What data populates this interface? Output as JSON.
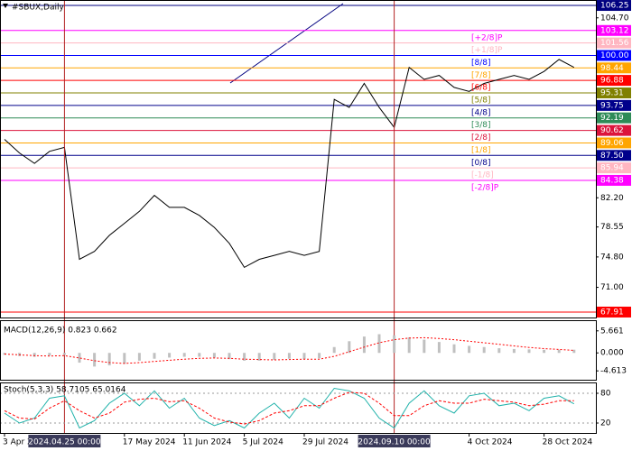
{
  "chart_data": [
    {
      "type": "line",
      "title": "#SBUX,Daily",
      "color": "#000000",
      "grid": false,
      "categories": [
        "3 Apr 2024",
        null,
        null,
        null,
        null,
        null,
        null,
        null,
        "17 May 2024",
        null,
        null,
        null,
        "11 Jun 2024",
        null,
        null,
        null,
        "5 Jul 2024",
        null,
        null,
        null,
        "29 Jul 2024",
        null,
        null,
        null,
        null,
        null,
        null,
        null,
        null,
        null,
        null,
        "4 Oct 2024",
        null,
        null,
        null,
        null,
        "28 Oct 2024",
        null,
        null
      ],
      "values": [
        89.5,
        87.8,
        86.5,
        88.0,
        88.5,
        74.5,
        75.5,
        77.5,
        79.0,
        80.5,
        82.5,
        81.0,
        81.0,
        80.0,
        78.5,
        76.5,
        73.5,
        74.5,
        75.0,
        75.5,
        75.0,
        75.5,
        94.5,
        93.5,
        96.5,
        93.5,
        91.0,
        98.5,
        97.0,
        97.5,
        96.0,
        95.5,
        96.5,
        97.0,
        97.5,
        97.0,
        98.0,
        99.5,
        98.5
      ],
      "crosshairs": [
        "2024.04.25 00:00",
        "2024.09.10 00:00"
      ],
      "ylim": [
        67.23,
        106.93
      ],
      "yticks": [
        {
          "value": 104.7,
          "label": "104.70"
        },
        {
          "value": 82.2,
          "label": "82.20"
        },
        78.55,
        {
          "value": 74.8,
          "label": "74.80"
        },
        {
          "value": 71,
          "label": "71.00"
        }
      ],
      "levels": [
        {
          "value": 106.25,
          "label": "106.25",
          "color": "#000080"
        },
        {
          "value": 103.12,
          "label": "103.12",
          "name": "[+2/8]P",
          "color": "#ff00ff"
        },
        {
          "value": 101.56,
          "label": "101.56",
          "name": "[+1/8]P",
          "color": "#ffb6c1"
        },
        {
          "value": 100,
          "label": "100.00",
          "name": "[8/8]",
          "color": "#0000ff"
        },
        {
          "value": 98.44,
          "label": "98.44",
          "name": "[7/8]",
          "color": "#ffa500"
        },
        {
          "value": 96.88,
          "label": "96.88",
          "name": "[6/8]",
          "color": "#ff0000"
        },
        {
          "value": 95.31,
          "label": "95.31",
          "name": "[5/8]",
          "color": "#808000"
        },
        {
          "value": 93.75,
          "label": "93.75",
          "name": "[4/8]",
          "color": "#00008b"
        },
        {
          "value": 92.19,
          "label": "92.19",
          "name": "[3/8]",
          "color": "#2e8b57"
        },
        {
          "value": 90.62,
          "label": "90.62",
          "name": "[2/8]",
          "color": "#dc143c"
        },
        {
          "value": 89.06,
          "label": "89.06",
          "name": "[1/8]",
          "color": "#ffa500"
        },
        {
          "value": 87.5,
          "label": "87.50",
          "name": "[0/8]",
          "color": "#00008b"
        },
        {
          "value": 85.94,
          "label": "85.94",
          "name": "[-1/8]",
          "color": "#ffb6c1"
        },
        {
          "value": 84.38,
          "label": "84.38",
          "name": "[-2/8]P",
          "color": "#ff00ff"
        },
        {
          "value": 67.91,
          "label": "67.91",
          "color": "#ff0000"
        }
      ]
    },
    {
      "type": "bar",
      "title": "MACD(12,26,9) 0.823 0.662",
      "ylim": [
        -6.89,
        8.16
      ],
      "yticks": [
        5.661,
        {
          "value": 0,
          "label": "0.000"
        },
        -4.613
      ],
      "series": [
        {
          "name": "MACD",
          "color": "#c0c0c0",
          "values": [
            -0.5,
            -0.8,
            -1.0,
            -0.7,
            -0.5,
            -2.5,
            -3.5,
            -3.2,
            -2.8,
            -2.0,
            -1.5,
            -1.2,
            -1.0,
            -1.0,
            -1.2,
            -1.6,
            -2.0,
            -2.0,
            -1.8,
            -1.5,
            -1.6,
            -1.4,
            1.5,
            3.0,
            4.2,
            4.8,
            4.5,
            4.0,
            3.4,
            2.8,
            2.2,
            1.8,
            1.5,
            1.2,
            1.0,
            0.9,
            0.8,
            0.8,
            0.823
          ]
        },
        {
          "name": "Signal",
          "color": "#ff0000",
          "values": [
            -0.3,
            -0.5,
            -0.7,
            -0.8,
            -0.7,
            -1.3,
            -2.0,
            -2.5,
            -2.7,
            -2.5,
            -2.2,
            -1.9,
            -1.6,
            -1.4,
            -1.3,
            -1.4,
            -1.6,
            -1.7,
            -1.8,
            -1.7,
            -1.6,
            -1.6,
            -0.9,
            0.3,
            1.5,
            2.6,
            3.4,
            3.8,
            3.9,
            3.7,
            3.4,
            3.0,
            2.6,
            2.2,
            1.8,
            1.4,
            1.1,
            0.9,
            0.662
          ]
        }
      ]
    },
    {
      "type": "line",
      "title": "Stoch(5,3,3) 58.7105 65.0164",
      "ylim": [
        0,
        100
      ],
      "yticks": [
        80,
        20
      ],
      "series": [
        {
          "name": "%K",
          "color": "#20b2aa",
          "values": [
            40,
            20,
            30,
            70,
            75,
            10,
            25,
            60,
            80,
            55,
            85,
            50,
            70,
            30,
            15,
            25,
            10,
            40,
            60,
            30,
            70,
            50,
            90,
            85,
            70,
            30,
            10,
            60,
            85,
            55,
            40,
            75,
            80,
            55,
            60,
            45,
            70,
            75,
            58.7105
          ]
        },
        {
          "name": "%D",
          "color": "#ff0000",
          "values": [
            45,
            30,
            28,
            50,
            65,
            45,
            30,
            40,
            62,
            68,
            70,
            63,
            65,
            50,
            30,
            22,
            18,
            25,
            40,
            45,
            55,
            55,
            70,
            82,
            80,
            60,
            35,
            35,
            55,
            65,
            60,
            60,
            68,
            65,
            62,
            55,
            58,
            65,
            65.0164
          ]
        }
      ]
    }
  ]
}
